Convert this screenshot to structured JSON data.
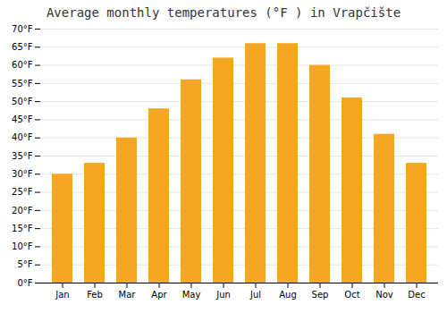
{
  "chart_data": {
    "type": "bar",
    "title": "Average monthly temperatures (°F ) in Vrapčište",
    "categories": [
      "Jan",
      "Feb",
      "Mar",
      "Apr",
      "May",
      "Jun",
      "Jul",
      "Aug",
      "Sep",
      "Oct",
      "Nov",
      "Dec"
    ],
    "values": [
      30,
      33,
      40,
      48,
      56,
      62,
      66,
      66,
      60,
      51,
      41,
      33
    ],
    "color": "#F5A623",
    "ylim": [
      0,
      70
    ],
    "yticks": [
      {
        "value": 0,
        "label": "0°F"
      },
      {
        "value": 5,
        "label": "5°F"
      },
      {
        "value": 10,
        "label": "10°F"
      },
      {
        "value": 15,
        "label": "15°F"
      },
      {
        "value": 20,
        "label": "20°F"
      },
      {
        "value": 25,
        "label": "25°F"
      },
      {
        "value": 30,
        "label": "30°F"
      },
      {
        "value": 35,
        "label": "35°F"
      },
      {
        "value": 40,
        "label": "40°F"
      },
      {
        "value": 45,
        "label": "45°F"
      },
      {
        "value": 50,
        "label": "50°F"
      },
      {
        "value": 55,
        "label": "55°F"
      },
      {
        "value": 60,
        "label": "60°F"
      },
      {
        "value": 65,
        "label": "65°F"
      },
      {
        "value": 70,
        "label": "70°F"
      }
    ],
    "grid": true
  }
}
